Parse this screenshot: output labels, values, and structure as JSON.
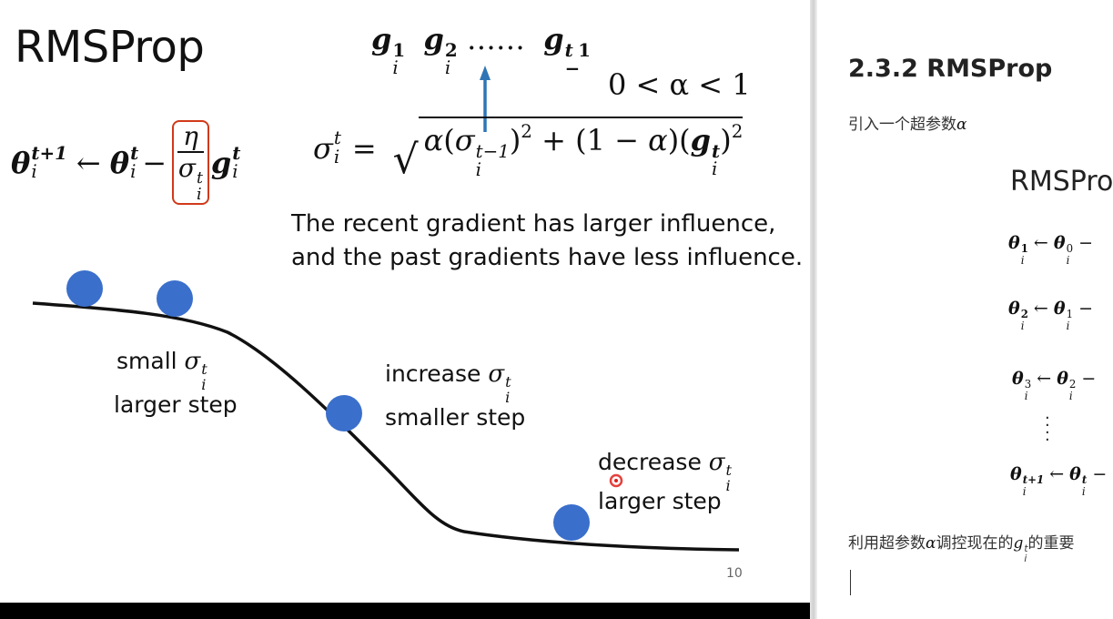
{
  "slide": {
    "title": "RMSProp",
    "gradient_sequence_dots": "……",
    "alpha_range": "0 < α < 1",
    "caption_line1": "The recent gradient has larger influence,",
    "caption_line2": "and the past gradients have less influence.",
    "labels": {
      "small_prefix": "small",
      "small_step": "larger step",
      "increase_prefix": "increase",
      "increase_step": "smaller step",
      "decrease_prefix": "decrease",
      "decrease_step": "larger step"
    },
    "page_number": "10"
  },
  "doc": {
    "heading": "2.3.2 RMSProp",
    "intro_prefix": "引入一个超参数",
    "intro_symbol": "α",
    "image_title": "RMSPro",
    "bottom_prefix": "利用超参数",
    "bottom_symbol": "α",
    "bottom_middle": "调控现在的",
    "bottom_suffix": "的重要"
  },
  "colors": {
    "ball": "#3a6fcb",
    "arrow": "#2f75b5",
    "highlight_box": "#d03a1a",
    "pointer": "#e0201c"
  }
}
